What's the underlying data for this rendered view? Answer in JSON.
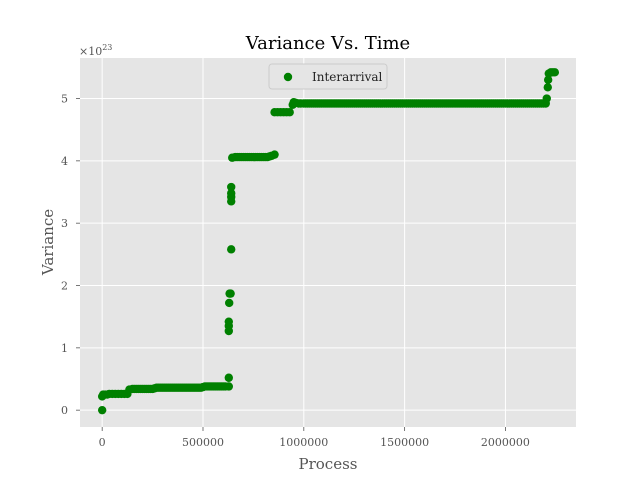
{
  "chart_data": {
    "type": "scatter",
    "title": "Variance Vs. Time",
    "xlabel": "Process",
    "ylabel": "Variance",
    "y_scale_factor": "×10",
    "y_scale_exponent": "23",
    "xlim": [
      -110000,
      2350000
    ],
    "ylim": [
      -0.27,
      5.65
    ],
    "x_ticks": [
      0,
      500000,
      1000000,
      1500000,
      2000000
    ],
    "x_tick_labels": [
      "0",
      "500000",
      "1000000",
      "1500000",
      "2000000"
    ],
    "y_ticks": [
      0,
      1,
      2,
      3,
      4,
      5
    ],
    "y_tick_labels": [
      "0",
      "1",
      "2",
      "3",
      "4",
      "5"
    ],
    "grid": true,
    "legend_position": "top-center",
    "series": [
      {
        "name": "Interarrival",
        "color": "#008000",
        "points": [
          [
            0,
            0.0
          ],
          [
            0,
            0.22
          ],
          [
            5000,
            0.25
          ],
          [
            15000,
            0.25
          ],
          [
            25000,
            0.25
          ],
          [
            35000,
            0.26
          ],
          [
            50000,
            0.26
          ],
          [
            65000,
            0.26
          ],
          [
            80000,
            0.26
          ],
          [
            95000,
            0.26
          ],
          [
            110000,
            0.26
          ],
          [
            125000,
            0.26
          ],
          [
            135000,
            0.33
          ],
          [
            150000,
            0.34
          ],
          [
            170000,
            0.34
          ],
          [
            190000,
            0.34
          ],
          [
            210000,
            0.34
          ],
          [
            230000,
            0.34
          ],
          [
            250000,
            0.34
          ],
          [
            270000,
            0.36
          ],
          [
            290000,
            0.36
          ],
          [
            310000,
            0.36
          ],
          [
            330000,
            0.36
          ],
          [
            350000,
            0.36
          ],
          [
            370000,
            0.36
          ],
          [
            390000,
            0.36
          ],
          [
            410000,
            0.36
          ],
          [
            430000,
            0.36
          ],
          [
            450000,
            0.36
          ],
          [
            470000,
            0.36
          ],
          [
            490000,
            0.36
          ],
          [
            510000,
            0.38
          ],
          [
            530000,
            0.38
          ],
          [
            550000,
            0.38
          ],
          [
            570000,
            0.38
          ],
          [
            590000,
            0.38
          ],
          [
            610000,
            0.38
          ],
          [
            628000,
            0.38
          ],
          [
            628000,
            0.52
          ],
          [
            628000,
            1.27
          ],
          [
            628000,
            1.35
          ],
          [
            628000,
            1.42
          ],
          [
            630000,
            1.72
          ],
          [
            632000,
            1.87
          ],
          [
            637000,
            1.87
          ],
          [
            640000,
            2.58
          ],
          [
            640000,
            3.35
          ],
          [
            640000,
            3.42
          ],
          [
            640000,
            3.48
          ],
          [
            640000,
            3.58
          ],
          [
            645000,
            4.05
          ],
          [
            660000,
            4.06
          ],
          [
            680000,
            4.06
          ],
          [
            700000,
            4.06
          ],
          [
            720000,
            4.06
          ],
          [
            740000,
            4.06
          ],
          [
            760000,
            4.06
          ],
          [
            780000,
            4.06
          ],
          [
            800000,
            4.06
          ],
          [
            820000,
            4.06
          ],
          [
            840000,
            4.08
          ],
          [
            855000,
            4.1
          ],
          [
            855000,
            4.78
          ],
          [
            870000,
            4.78
          ],
          [
            885000,
            4.78
          ],
          [
            900000,
            4.78
          ],
          [
            915000,
            4.78
          ],
          [
            930000,
            4.78
          ],
          [
            945000,
            4.9
          ],
          [
            950000,
            4.94
          ],
          [
            975000,
            4.92
          ],
          [
            1000000,
            4.92
          ],
          [
            1050000,
            4.92
          ],
          [
            1100000,
            4.92
          ],
          [
            1150000,
            4.92
          ],
          [
            1200000,
            4.92
          ],
          [
            1250000,
            4.92
          ],
          [
            1300000,
            4.92
          ],
          [
            1350000,
            4.92
          ],
          [
            1400000,
            4.92
          ],
          [
            1450000,
            4.92
          ],
          [
            1500000,
            4.92
          ],
          [
            1550000,
            4.92
          ],
          [
            1600000,
            4.92
          ],
          [
            1650000,
            4.92
          ],
          [
            1700000,
            4.92
          ],
          [
            1750000,
            4.92
          ],
          [
            1800000,
            4.92
          ],
          [
            1850000,
            4.92
          ],
          [
            1900000,
            4.92
          ],
          [
            1950000,
            4.92
          ],
          [
            2000000,
            4.92
          ],
          [
            2050000,
            4.92
          ],
          [
            2100000,
            4.92
          ],
          [
            2150000,
            4.92
          ],
          [
            2200000,
            4.92
          ],
          [
            2205000,
            5.0
          ],
          [
            2210000,
            5.18
          ],
          [
            2212000,
            5.3
          ],
          [
            2215000,
            5.4
          ],
          [
            2225000,
            5.42
          ],
          [
            2235000,
            5.42
          ],
          [
            2245000,
            5.42
          ]
        ]
      }
    ]
  }
}
